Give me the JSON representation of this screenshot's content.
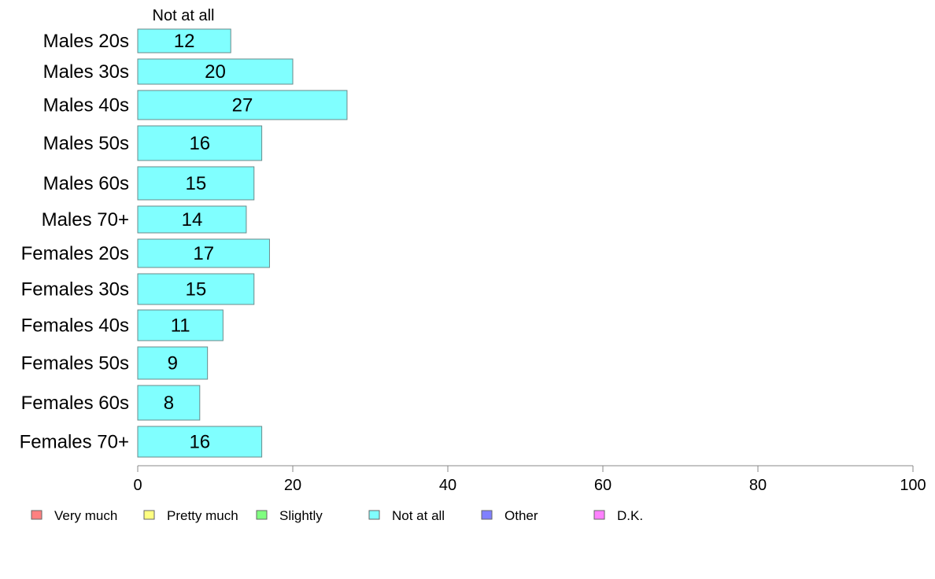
{
  "chart_data": {
    "type": "bar",
    "orientation": "horizontal",
    "stacked": true,
    "categories": [
      "Males 20s",
      "Males 30s",
      "Males 40s",
      "Males 50s",
      "Males 60s",
      "Males 70+",
      "Females 20s",
      "Females 30s",
      "Females 40s",
      "Females 50s",
      "Females 60s",
      "Females 70+"
    ],
    "series": [
      {
        "name": "Not at all",
        "color": "#80ffff",
        "values": [
          12,
          20,
          27,
          16,
          15,
          14,
          17,
          15,
          11,
          9,
          8,
          16
        ]
      }
    ],
    "series_header": "Not at all",
    "xlim": [
      0,
      100
    ],
    "xticks": [
      0,
      20,
      40,
      60,
      80,
      100
    ],
    "grid": false,
    "legend": {
      "position": "bottom",
      "items": [
        {
          "label": "Very much",
          "color": "#ff8080"
        },
        {
          "label": "Pretty much",
          "color": "#ffff80"
        },
        {
          "label": "Slightly",
          "color": "#80ff80"
        },
        {
          "label": "Not at all",
          "color": "#80ffff"
        },
        {
          "label": "Other",
          "color": "#8080ff"
        },
        {
          "label": "D.K.",
          "color": "#ff80ff"
        }
      ]
    }
  }
}
